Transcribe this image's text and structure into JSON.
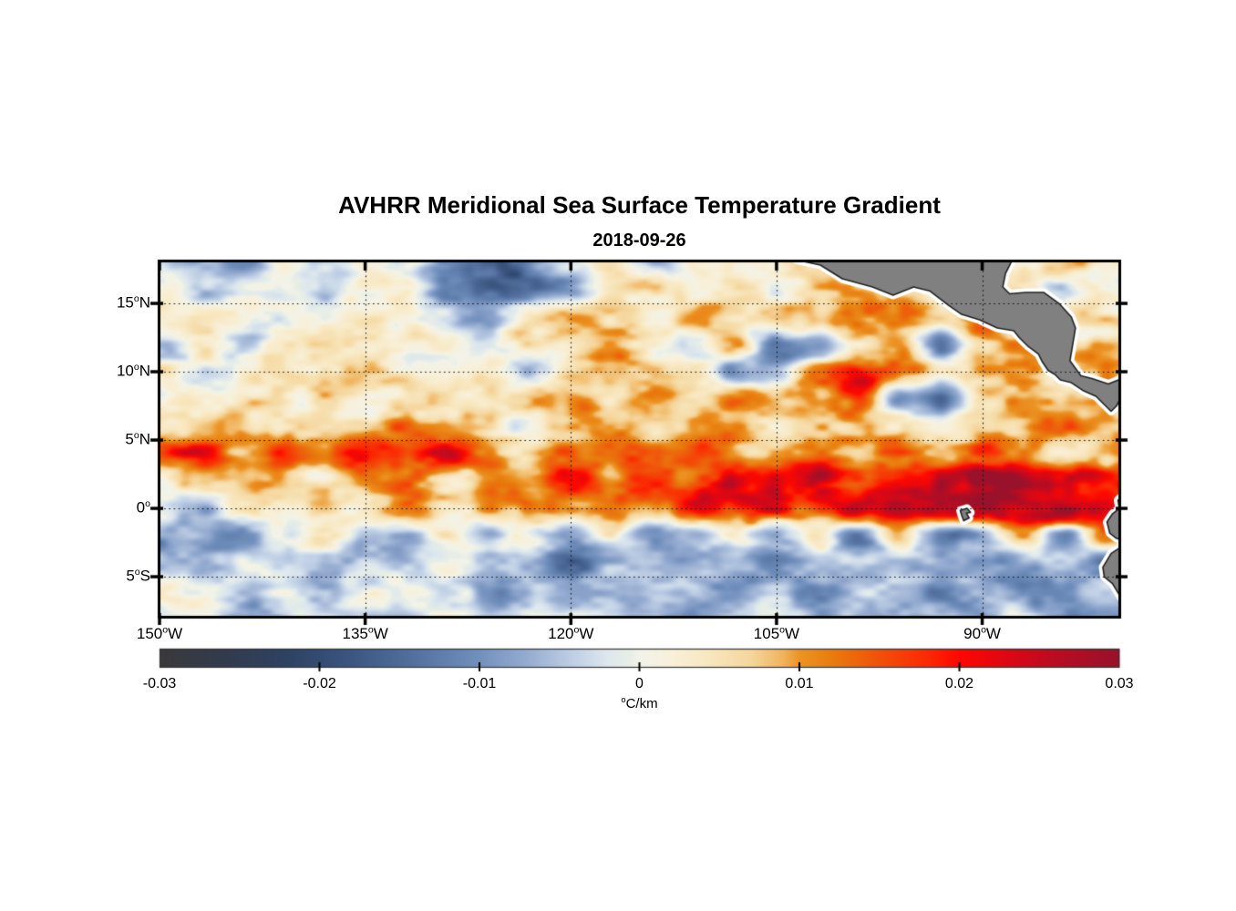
{
  "chart_data": {
    "type": "heatmap",
    "title": "AVHRR Meridional Sea Surface Temperature Gradient",
    "subtitle": "2018-09-26",
    "unit": "°C/km",
    "grid_on": true,
    "grid_style": "dotted",
    "x_axis": {
      "range_lon": [
        -150,
        -80
      ],
      "ticks": [
        {
          "value": -150,
          "num": "150",
          "suffix": "W"
        },
        {
          "value": -135,
          "num": "135",
          "suffix": "W"
        },
        {
          "value": -120,
          "num": "120",
          "suffix": "W"
        },
        {
          "value": -105,
          "num": "105",
          "suffix": "W"
        },
        {
          "value": -90,
          "num": "90",
          "suffix": "W"
        }
      ]
    },
    "y_axis": {
      "range_lat": [
        18.07,
        -7.93
      ],
      "ticks": [
        {
          "value": 15,
          "num": "15",
          "suffix": "N"
        },
        {
          "value": 10,
          "num": "10",
          "suffix": "N"
        },
        {
          "value": 5,
          "num": "5",
          "suffix": "N"
        },
        {
          "value": 0,
          "num": "0",
          "suffix": ""
        },
        {
          "value": -5,
          "num": "5",
          "suffix": "S"
        }
      ]
    },
    "colorbar": {
      "range": [
        -0.03,
        0.03
      ],
      "ticks": [
        {
          "value": -0.03,
          "label": "-0.03"
        },
        {
          "value": -0.02,
          "label": "-0.02"
        },
        {
          "value": -0.01,
          "label": "-0.01"
        },
        {
          "value": 0,
          "label": "0"
        },
        {
          "value": 0.01,
          "label": "0.01"
        },
        {
          "value": 0.02,
          "label": "0.02"
        },
        {
          "value": 0.03,
          "label": "0.03"
        }
      ],
      "stops": [
        {
          "v": -0.03,
          "c": "#3a393b"
        },
        {
          "v": -0.026,
          "c": "#323b4d"
        },
        {
          "v": -0.022,
          "c": "#2e4263"
        },
        {
          "v": -0.018,
          "c": "#3b5681"
        },
        {
          "v": -0.014,
          "c": "#54719f"
        },
        {
          "v": -0.01,
          "c": "#7290bd"
        },
        {
          "v": -0.007,
          "c": "#96acd1"
        },
        {
          "v": -0.004,
          "c": "#c1d1e6"
        },
        {
          "v": -0.002,
          "c": "#dde7ee"
        },
        {
          "v": -0.0005,
          "c": "#e9efe6"
        },
        {
          "v": 0.0,
          "c": "#f2f3ea"
        },
        {
          "v": 0.002,
          "c": "#f8f0da"
        },
        {
          "v": 0.004,
          "c": "#f8e9c4"
        },
        {
          "v": 0.007,
          "c": "#f5d69d"
        },
        {
          "v": 0.009,
          "c": "#f0b35c"
        },
        {
          "v": 0.01,
          "c": "#ec9426"
        },
        {
          "v": 0.012,
          "c": "#e87d0e"
        },
        {
          "v": 0.015,
          "c": "#f1510a"
        },
        {
          "v": 0.018,
          "c": "#fb2a03"
        },
        {
          "v": 0.02,
          "c": "#fd0800"
        },
        {
          "v": 0.023,
          "c": "#dd0714"
        },
        {
          "v": 0.026,
          "c": "#ba0c22"
        },
        {
          "v": 0.03,
          "c": "#97122a"
        }
      ]
    },
    "grid": {
      "lon_start": -150,
      "lon_step": 3,
      "lat_start": 18,
      "lat_step": -2,
      "units": "0.001 °C/km",
      "values_milli": [
        [
          -3,
          -6,
          -7,
          2,
          -7,
          1,
          3,
          -12,
          -16,
          -13,
          -5,
          2,
          -3,
          3,
          1,
          3,
          4,
          2,
          3,
          2,
          5,
          3,
          6,
          3,
          4
        ],
        [
          2,
          -5,
          1,
          3,
          -2,
          2,
          4,
          -9,
          -13,
          -13,
          -8,
          2,
          6,
          3,
          7,
          4,
          10,
          12,
          8,
          4,
          2,
          5,
          -4,
          4,
          -5
        ],
        [
          1,
          4,
          6,
          1,
          2,
          4,
          2,
          -5,
          -7,
          2,
          6,
          4,
          2,
          7,
          4,
          9,
          6,
          13,
          10,
          7,
          18,
          4,
          6,
          8,
          5
        ],
        [
          -5,
          2,
          -4,
          3,
          5,
          2,
          6,
          3,
          -4,
          6,
          3,
          8,
          5,
          -4,
          9,
          -10,
          -12,
          8,
          12,
          -10,
          8,
          10,
          6,
          8,
          6
        ],
        [
          3,
          -3,
          2,
          5,
          3,
          6,
          4,
          2,
          5,
          -6,
          8,
          5,
          9,
          6,
          -8,
          -6,
          10,
          16,
          13,
          8,
          12,
          12,
          5,
          9,
          6
        ],
        [
          2,
          4,
          3,
          2,
          6,
          3,
          5,
          7,
          4,
          6,
          9,
          4,
          10,
          7,
          12,
          6,
          9,
          18,
          -8,
          -14,
          9,
          13,
          6,
          10,
          5
        ],
        [
          6,
          4,
          8,
          5,
          3,
          6,
          9,
          5,
          8,
          4,
          6,
          10,
          5,
          8,
          12,
          6,
          9,
          13,
          8,
          5,
          9,
          6,
          10,
          7,
          5
        ],
        [
          14,
          18,
          10,
          16,
          12,
          22,
          18,
          24,
          14,
          8,
          12,
          18,
          10,
          14,
          8,
          10,
          15,
          8,
          12,
          8,
          14,
          9,
          7,
          11,
          9
        ],
        [
          5,
          8,
          3,
          9,
          5,
          10,
          16,
          7,
          15,
          9,
          18,
          13,
          20,
          16,
          22,
          18,
          24,
          20,
          26,
          22,
          28,
          24,
          21,
          26,
          22
        ],
        [
          2,
          -4,
          3,
          2,
          6,
          3,
          10,
          5,
          10,
          13,
          9,
          16,
          12,
          20,
          15,
          22,
          19,
          26,
          22,
          25,
          28,
          24,
          29,
          26,
          20
        ],
        [
          -7,
          -4,
          -9,
          -3,
          6,
          -5,
          -8,
          3,
          -6,
          2,
          -8,
          4,
          -9,
          -3,
          5,
          -7,
          3,
          -11,
          7,
          -14,
          -9,
          5,
          -12,
          16,
          22
        ],
        [
          -4,
          -8,
          -3,
          -6,
          -10,
          -4,
          -8,
          -2,
          -5,
          -8,
          -12,
          -6,
          -3,
          -8,
          -5,
          -10,
          -6,
          -4,
          -8,
          -5,
          -12,
          -8,
          -6,
          -10,
          8
        ],
        [
          2,
          -4,
          -6,
          -2,
          -8,
          -4,
          -2,
          -6,
          -10,
          -4,
          -6,
          -2,
          -8,
          -4,
          -10,
          -6,
          -12,
          -8,
          -4,
          -10,
          -6,
          -14,
          -8,
          -4,
          -6
        ],
        [
          -2,
          2,
          -4,
          -2,
          -6,
          -3,
          -5,
          -2,
          -8,
          -4,
          -2,
          -6,
          -3,
          -8,
          -5,
          -2,
          -6,
          -4,
          -8,
          -3,
          -6,
          -2,
          -10,
          -6,
          -4
        ]
      ]
    },
    "land": {
      "fill": "#808080",
      "outline": "#222222",
      "coast_buffer": "#ffffff",
      "regions": [
        {
          "name": "central-america",
          "points": [
            [
              -104.2,
              19.5
            ],
            [
              -103.6,
              18.2
            ],
            [
              -101.8,
              17.8
            ],
            [
              -100.2,
              16.8
            ],
            [
              -98,
              16.2
            ],
            [
              -96.5,
              15.6
            ],
            [
              -95,
              16.2
            ],
            [
              -93.8,
              15.9
            ],
            [
              -92.5,
              14.9
            ],
            [
              -91.5,
              14.2
            ],
            [
              -90.2,
              13.8
            ],
            [
              -88.9,
              13.2
            ],
            [
              -87.7,
              13
            ],
            [
              -87.3,
              12.5
            ],
            [
              -86.7,
              11.9
            ],
            [
              -85.9,
              11.3
            ],
            [
              -85.6,
              10.7
            ],
            [
              -85.2,
              10.1
            ],
            [
              -84.7,
              9.8
            ],
            [
              -84.3,
              9.4
            ],
            [
              -83.5,
              9.2
            ],
            [
              -82.6,
              8.6
            ],
            [
              -81.7,
              8.2
            ],
            [
              -81.1,
              7.6
            ],
            [
              -80.6,
              7.1
            ],
            [
              -80.2,
              7.5
            ],
            [
              -79.8,
              8.3
            ],
            [
              -79,
              8.2
            ],
            [
              -78,
              8.1
            ],
            [
              -77.5,
              8.5
            ],
            [
              -77.5,
              9.6
            ],
            [
              -78.4,
              9.4
            ],
            [
              -79.6,
              9.6
            ],
            [
              -80.8,
              9.1
            ],
            [
              -82,
              9.5
            ],
            [
              -82.8,
              9.7
            ],
            [
              -83.6,
              10.8
            ],
            [
              -83.4,
              12
            ],
            [
              -83.2,
              13.2
            ],
            [
              -83.5,
              14
            ],
            [
              -84.4,
              15
            ],
            [
              -85.5,
              15.8
            ],
            [
              -86.8,
              15.8
            ],
            [
              -88,
              15.7
            ],
            [
              -88.5,
              16.2
            ],
            [
              -88.3,
              17.2
            ],
            [
              -87.9,
              18
            ],
            [
              -87.6,
              19.5
            ]
          ]
        },
        {
          "name": "south-america",
          "points": [
            [
              -78.5,
              2.2
            ],
            [
              -79.6,
              1.1
            ],
            [
              -80.1,
              0.6
            ],
            [
              -80,
              0
            ],
            [
              -80.5,
              -0.4
            ],
            [
              -80.9,
              -1
            ],
            [
              -80.7,
              -1.8
            ],
            [
              -80.2,
              -2.2
            ],
            [
              -79.7,
              -2.3
            ],
            [
              -80,
              -2.9
            ],
            [
              -80.6,
              -3.3
            ],
            [
              -81.2,
              -4.3
            ],
            [
              -81.1,
              -5
            ],
            [
              -80.5,
              -5.5
            ],
            [
              -79.9,
              -6.5
            ],
            [
              -79.2,
              -7.5
            ],
            [
              -78.7,
              -8.5
            ],
            [
              -76,
              -9
            ],
            [
              -76,
              2.2
            ]
          ]
        },
        {
          "name": "galapagos-islands",
          "points": [
            [
              -91.6,
              -0.15
            ],
            [
              -91.1,
              0
            ],
            [
              -90.85,
              -0.3
            ],
            [
              -91.15,
              -0.35
            ],
            [
              -90.95,
              -0.7
            ],
            [
              -91.35,
              -0.9
            ],
            [
              -91.5,
              -0.5
            ]
          ]
        }
      ]
    }
  }
}
